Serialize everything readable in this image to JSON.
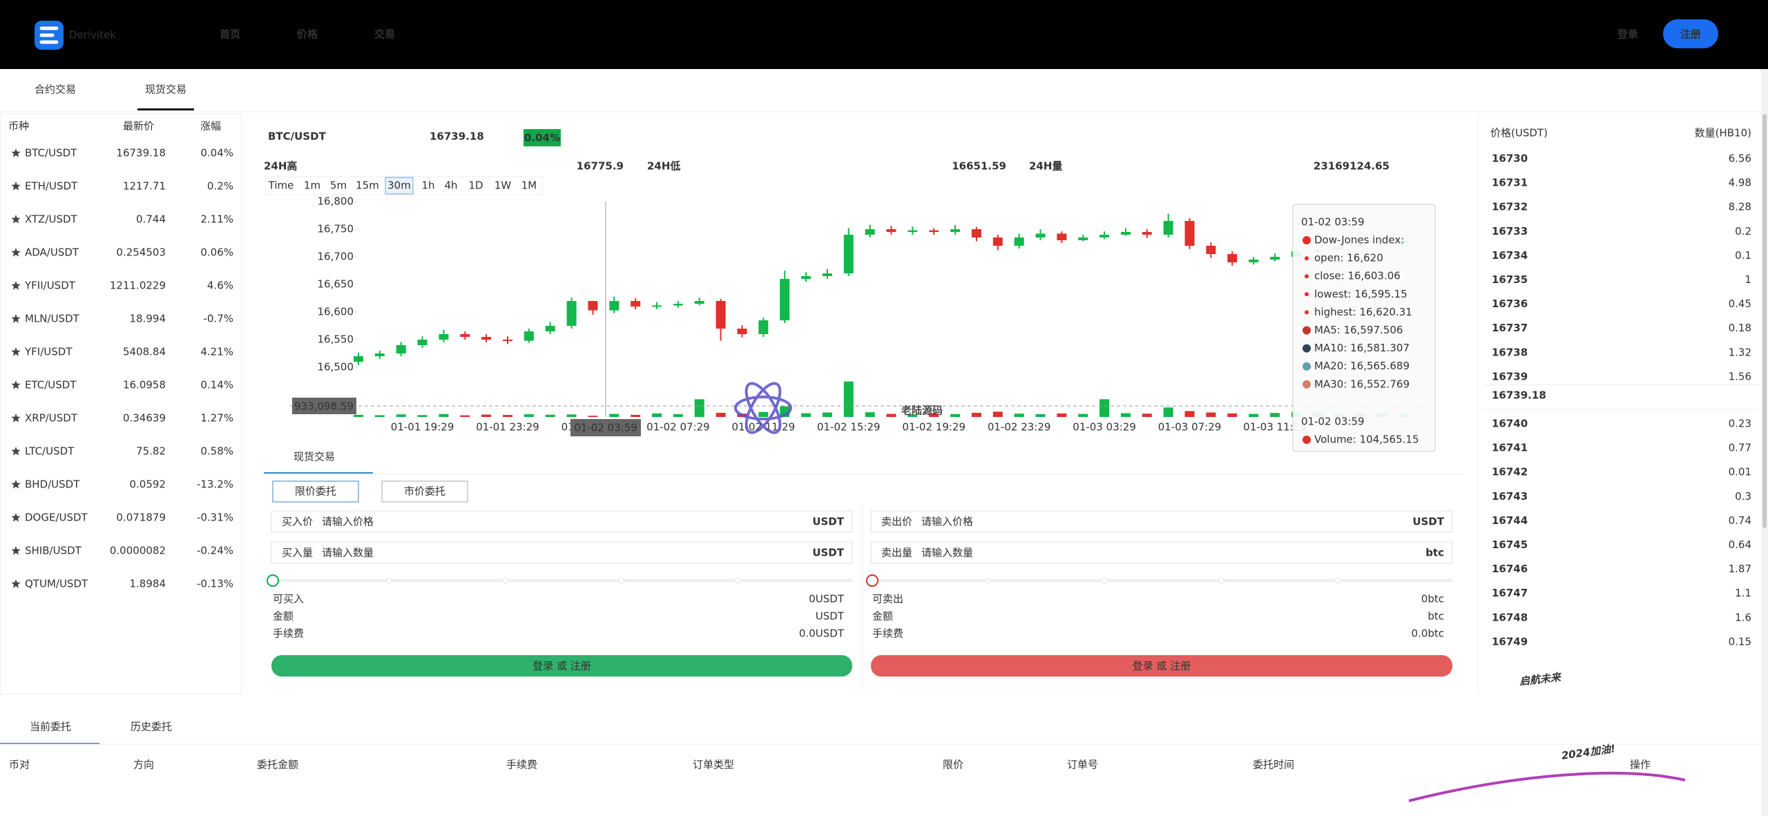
{
  "nav": {
    "brand": "Derivitek",
    "links": [
      "首页",
      "价格",
      "交易"
    ],
    "login": "登录",
    "register": "注册"
  },
  "tabs": [
    "合约交易",
    "现货交易"
  ],
  "market": {
    "headers": [
      "币种",
      "最新价",
      "涨幅"
    ],
    "up_color": "#12a84a",
    "down_color": "#d8302c",
    "rows": [
      [
        "BTC/USDT",
        "16739.18",
        "0.04%"
      ],
      [
        "ETH/USDT",
        "1217.71",
        "0.2%"
      ],
      [
        "XTZ/USDT",
        "0.744",
        "2.11%"
      ],
      [
        "ADA/USDT",
        "0.254503",
        "0.06%"
      ],
      [
        "YFII/USDT",
        "1211.0229",
        "4.6%"
      ],
      [
        "MLN/USDT",
        "18.994",
        "-0.7%"
      ],
      [
        "YFI/USDT",
        "5408.84",
        "4.21%"
      ],
      [
        "ETC/USDT",
        "16.0958",
        "0.14%"
      ],
      [
        "XRP/USDT",
        "0.34639",
        "1.27%"
      ],
      [
        "LTC/USDT",
        "75.82",
        "0.58%"
      ],
      [
        "BHD/USDT",
        "0.0592",
        "-13.2%"
      ],
      [
        "DOGE/USDT",
        "0.071879",
        "-0.31%"
      ],
      [
        "SHIB/USDT",
        "0.0000082",
        "-0.24%"
      ],
      [
        "QTUM/USDT",
        "1.8984",
        "-0.13%"
      ]
    ]
  },
  "pair": {
    "symbol": "BTC/USDT",
    "price": "16739.18",
    "change": "0.04%",
    "stats": [
      [
        "24H高",
        "16775.9"
      ],
      [
        "24H低",
        "16651.59"
      ],
      [
        "24H量",
        "23169124.65"
      ]
    ]
  },
  "intervals": {
    "items": [
      "Time",
      "1m",
      "5m",
      "15m",
      "30m",
      "1h",
      "4h",
      "1D",
      "1W",
      "1M"
    ],
    "active": "30m"
  },
  "chart_data": {
    "type": "candlestick",
    "x": [
      null,
      null,
      null,
      "01-01 19:29",
      null,
      null,
      null,
      "01-01 23:29",
      null,
      null,
      null,
      "01-02 03:29",
      null,
      null,
      null,
      "01-02 07:29",
      null,
      null,
      null,
      "01-02 11:29",
      null,
      null,
      null,
      "01-02 15:29",
      null,
      null,
      null,
      "01-02 19:29",
      null,
      null,
      null,
      "01-02 23:29",
      null,
      null,
      null,
      "01-03 03:29",
      null,
      null,
      null,
      "01-03 07:29",
      null,
      null,
      null,
      "01-03 11:29",
      null,
      null,
      null,
      null,
      null,
      null
    ],
    "open": [
      16510,
      16520,
      16525,
      16540,
      16550,
      16560,
      16555,
      16550,
      16548,
      16565,
      16575,
      16620,
      16603.06,
      16620,
      16610,
      16612,
      16615,
      16620,
      16570,
      16560,
      16585,
      16660,
      16665,
      16670,
      16740,
      16750,
      16745,
      16748,
      16745,
      16750,
      16735,
      16720,
      16735,
      16742,
      16730,
      16735,
      16740,
      16745,
      16740,
      16765,
      16720,
      16705,
      16690,
      16695,
      16700,
      16710,
      16712,
      16718,
      16722,
      16725
    ],
    "close": [
      16520,
      16525,
      16540,
      16550,
      16560,
      16555,
      16550,
      16548,
      16565,
      16575,
      16620,
      16603.06,
      16620,
      16610,
      16612,
      16615,
      16620,
      16570,
      16560,
      16585,
      16660,
      16665,
      16670,
      16740,
      16750,
      16745,
      16748,
      16745,
      16750,
      16735,
      16720,
      16735,
      16742,
      16730,
      16735,
      16740,
      16745,
      16740,
      16765,
      16720,
      16705,
      16690,
      16695,
      16700,
      16710,
      16712,
      16718,
      16722,
      16725,
      16730
    ],
    "high": [
      16526,
      16530,
      16546,
      16556,
      16568,
      16565,
      16560,
      16556,
      16570,
      16582,
      16626,
      16620.31,
      16628,
      16625,
      16618,
      16620,
      16626,
      16624,
      16576,
      16590,
      16675,
      16672,
      16678,
      16752,
      16758,
      16756,
      16755,
      16752,
      16758,
      16754,
      16740,
      16742,
      16750,
      16746,
      16740,
      16746,
      16752,
      16750,
      16778,
      16770,
      16726,
      16710,
      16700,
      16706,
      16716,
      16718,
      16724,
      16728,
      16730,
      16736
    ],
    "low": [
      16504,
      16515,
      16520,
      16535,
      16545,
      16550,
      16545,
      16542,
      16544,
      16560,
      16570,
      16595.15,
      16598,
      16605,
      16605,
      16608,
      16612,
      16548,
      16554,
      16555,
      16580,
      16655,
      16660,
      16665,
      16735,
      16740,
      16740,
      16740,
      16740,
      16728,
      16712,
      16715,
      16730,
      16725,
      16728,
      16732,
      16738,
      16734,
      16735,
      16714,
      16698,
      16684,
      16686,
      16692,
      16702,
      16706,
      16710,
      16715,
      16718,
      16722
    ],
    "volume": [
      180000,
      150000,
      220000,
      160000,
      250000,
      140000,
      200000,
      170000,
      230000,
      190000,
      210000,
      104565.15,
      260000,
      180000,
      300000,
      240000,
      1500000,
      350000,
      280000,
      420000,
      900000,
      320000,
      380000,
      3000000,
      400000,
      260000,
      220000,
      300000,
      250000,
      350000,
      450000,
      280000,
      240000,
      300000,
      260000,
      1500000,
      320000,
      280000,
      800000,
      500000,
      380000,
      300000,
      260000,
      340000,
      420000,
      360000,
      300000,
      280000,
      320000,
      260000
    ],
    "up_color": "#12b84a",
    "down_color": "#e0302c",
    "ylim": [
      16500,
      16800
    ],
    "yticks": [
      {
        "value": 16500,
        "label": "16,500"
      },
      {
        "value": 16550,
        "label": "16,550"
      },
      {
        "value": 16600,
        "label": "16,600"
      },
      {
        "value": 16650,
        "label": "16,650"
      },
      {
        "value": 16700,
        "label": "16,700"
      },
      {
        "value": 16750,
        "label": "16,750"
      },
      {
        "value": 16800,
        "label": "16,800"
      }
    ],
    "vlim": [
      0,
      3500000
    ],
    "grid": false,
    "crosshair_value": "933,098.59",
    "crosshair_time": "01-02 03:59",
    "tooltip": {
      "time": "01-02 03:59",
      "items": [
        {
          "text": "Dow-Jones index:",
          "color": "#e0302c"
        },
        {
          "text": "open: 16,620",
          "color": "#e0302c"
        },
        {
          "text": "close: 16,603.06",
          "color": "#e0302c"
        },
        {
          "text": "lowest: 16,595.15",
          "color": "#e0302c"
        },
        {
          "text": "highest: 16,620.31",
          "color": "#e0302c"
        },
        {
          "text": "MA5: 16,597.506",
          "color": "#c23531"
        },
        {
          "text": "MA10: 16,581.307",
          "color": "#2f4554"
        },
        {
          "text": "MA20: 16,565.689",
          "color": "#61a0a8"
        },
        {
          "text": "MA30: 16,552.769",
          "color": "#d48265"
        }
      ],
      "volume_time": "01-02 03:59",
      "volume": {
        "text": "Volume: 104,565.15",
        "color": "#e0302c"
      }
    }
  },
  "order": {
    "tab": "现货交易",
    "modes": [
      "限价委托",
      "市价委托"
    ],
    "buy": {
      "fields": [
        [
          "买入价",
          "请输入价格",
          "USDT"
        ],
        [
          "买入量",
          "请输入数量",
          "USDT"
        ]
      ],
      "info": [
        [
          "可买入",
          "0USDT"
        ],
        [
          "金额",
          "USDT"
        ],
        [
          "手续费",
          "0.0USDT"
        ]
      ],
      "button": "登录 或 注册",
      "color": "#2eb16a"
    },
    "sell": {
      "fields": [
        [
          "卖出价",
          "请输入价格",
          "USDT"
        ],
        [
          "卖出量",
          "请输入数量",
          "btc"
        ]
      ],
      "info": [
        [
          "可卖出",
          "0btc"
        ],
        [
          "金额",
          "btc"
        ],
        [
          "手续费",
          "0.0btc"
        ]
      ],
      "button": "登录 或 注册",
      "color": "#e35d5d"
    }
  },
  "orderbook": {
    "headers": [
      "价格(USDT)",
      "数量(HB10)"
    ],
    "top_color": "#12a84a",
    "bottom_color": "#d8302c",
    "rows_top": [
      [
        "16730",
        "6.56"
      ],
      [
        "16731",
        "4.98"
      ],
      [
        "16732",
        "8.28"
      ],
      [
        "16733",
        "0.2"
      ],
      [
        "16734",
        "0.1"
      ],
      [
        "16735",
        "1"
      ],
      [
        "16736",
        "0.45"
      ],
      [
        "16737",
        "0.18"
      ],
      [
        "16738",
        "1.32"
      ],
      [
        "16739",
        "1.56"
      ]
    ],
    "mid": "16739.18",
    "rows_bottom": [
      [
        "16740",
        "0.23"
      ],
      [
        "16741",
        "0.77"
      ],
      [
        "16742",
        "0.01"
      ],
      [
        "16743",
        "0.3"
      ],
      [
        "16744",
        "0.74"
      ],
      [
        "16745",
        "0.64"
      ],
      [
        "16746",
        "1.87"
      ],
      [
        "16747",
        "1.1"
      ],
      [
        "16748",
        "1.6"
      ],
      [
        "16749",
        "0.15"
      ]
    ]
  },
  "orders": {
    "tabs": [
      "当前委托",
      "历史委托"
    ],
    "columns": [
      "币对",
      "方向",
      "委托金额",
      "手续费",
      "订单类型",
      "限价",
      "订单号",
      "委托时间",
      "操作"
    ]
  },
  "watermarks": {
    "center": "老陆源码",
    "corner": "启航未来",
    "corner_sub": "2024加油!"
  }
}
